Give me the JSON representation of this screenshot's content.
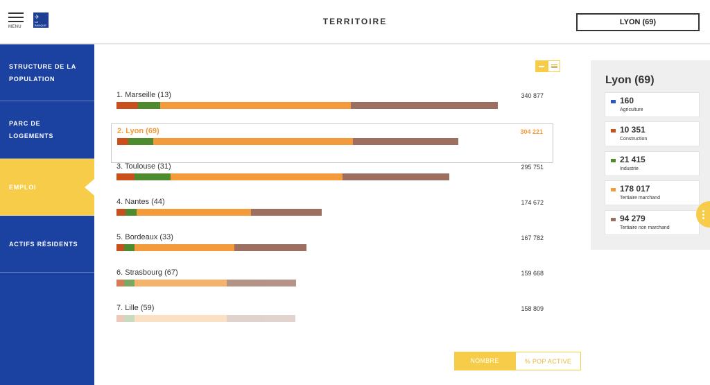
{
  "header": {
    "menu_label": "MENU",
    "logo_text": "LA BANQUE POSTALE",
    "title": "TERRITOIRE",
    "city_selector": "LYON (69)"
  },
  "sidebar": {
    "items": [
      {
        "label": "STRUCTURE DE LA POPULATION",
        "active": false
      },
      {
        "label": "PARC DE LOGEMENTS",
        "active": false
      },
      {
        "label": "EMPLOI",
        "active": true
      },
      {
        "label": "ACTIFS RÉSIDENTS",
        "active": false
      }
    ]
  },
  "colors": {
    "agriculture": "#2a56c6",
    "construction": "#c9501d",
    "industrie": "#4e8a2e",
    "tertiaire_marchand": "#f39a3b",
    "tertiaire_non_marchand": "#9c6f60",
    "accent": "#f7cc48",
    "sidebar": "#1c42a1"
  },
  "ranking": [
    {
      "label": "1. Marseille (13)",
      "value": "340 877",
      "segments": [
        0,
        19,
        20,
        170,
        131
      ],
      "opacity": 1,
      "selected": false
    },
    {
      "label": "2. Lyon (69)",
      "value": "304 221",
      "segments": [
        0,
        10,
        22,
        178,
        94
      ],
      "opacity": 1,
      "selected": true
    },
    {
      "label": "3. Toulouse (31)",
      "value": "295 751",
      "segments": [
        0,
        16,
        32,
        153,
        95
      ],
      "opacity": 1,
      "selected": false
    },
    {
      "label": "4. Nantes (44)",
      "value": "174 672",
      "segments": [
        0,
        8,
        10,
        102,
        63
      ],
      "opacity": 1,
      "selected": false
    },
    {
      "label": "5. Bordeaux (33)",
      "value": "167 782",
      "segments": [
        0,
        7,
        9,
        89,
        64
      ],
      "opacity": 1,
      "selected": false
    },
    {
      "label": "6. Strasbourg (67)",
      "value": "159 668",
      "segments": [
        0,
        7,
        9,
        82,
        62
      ],
      "opacity": 0.75,
      "selected": false
    },
    {
      "label": "7. Lille (59)",
      "value": "158 809",
      "segments": [
        0,
        7,
        9,
        82,
        61
      ],
      "opacity": 0.3,
      "selected": false
    }
  ],
  "legend": {
    "title": "Lyon (69)",
    "items": [
      {
        "value": "160",
        "label": "Agriculture",
        "color": "#2a56c6"
      },
      {
        "value": "10 351",
        "label": "Construction",
        "color": "#c9501d"
      },
      {
        "value": "21 415",
        "label": "Industrie",
        "color": "#4e8a2e"
      },
      {
        "value": "178 017",
        "label": "Tertiaire marchand",
        "color": "#f39a3b"
      },
      {
        "value": "94 279",
        "label": "Tertiaire non marchand",
        "color": "#9c6f60"
      }
    ]
  },
  "mode_toggle": {
    "nombre": "NOMBRE",
    "pct": "% POP ACTIVE"
  },
  "view_icons": [
    "bar-view-icon",
    "list-view-icon"
  ]
}
